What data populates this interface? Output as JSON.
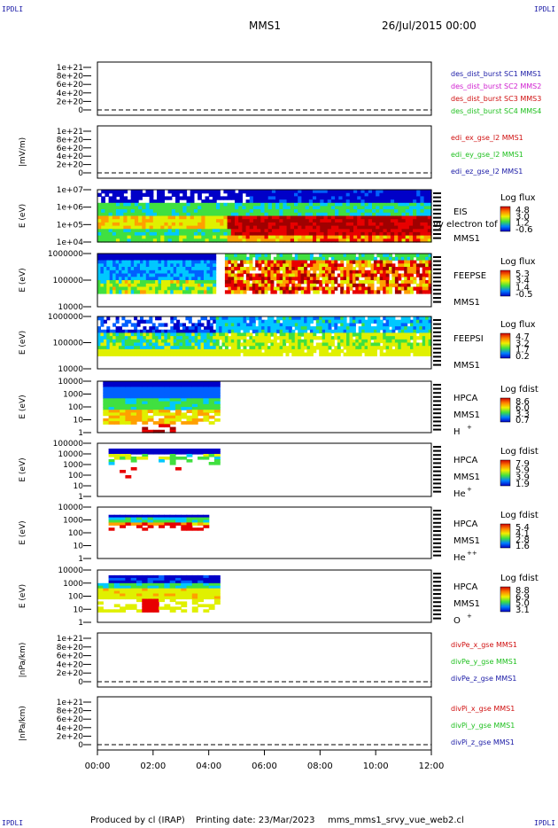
{
  "header": {
    "spacecraft": "MMS1",
    "date": "26/Jul/2015 00:00"
  },
  "corners": {
    "top_left": "IPDLI",
    "top_right": "IPDLI",
    "bottom_left": "IPDLI",
    "bottom_right": "IPDLI"
  },
  "footer": {
    "produced": "Produced by cl (IRAP)",
    "printing": "Printing date: 23/Mar/2023",
    "config": "mms_mms1_srvy_vue_web2.cl"
  },
  "colors": {
    "blue_label": "#1a1aa6",
    "red_label": "#d01010",
    "green_label": "#20c020",
    "magenta_label": "#d020d0",
    "colormap": [
      "#0000c8",
      "#0060ff",
      "#00c8ff",
      "#40e040",
      "#e0f000",
      "#ffa000",
      "#e80000",
      "#a00000"
    ]
  },
  "chart_data": [
    {
      "type": "line",
      "ylabel": "",
      "yticks": [
        "1e+21",
        "8e+20",
        "6e+20",
        "4e+20",
        "2e+20",
        "0"
      ],
      "legend": [
        {
          "text": "des_dist_burst SC1 MMS1",
          "color": "#1a1aa6"
        },
        {
          "text": "des_dist_burst SC2 MMS2",
          "color": "#d020d0"
        },
        {
          "text": "des_dist_burst SC3 MMS3",
          "color": "#d01010"
        },
        {
          "text": "des_dist_burst SC4 MMS4",
          "color": "#20c020"
        }
      ]
    },
    {
      "type": "line",
      "ylabel": "|mV/m)",
      "yticks": [
        "1e+21",
        "8e+20",
        "6e+20",
        "4e+20",
        "2e+20",
        "0"
      ],
      "legend": [
        {
          "text": "edi_ex_gse_l2 MMS1",
          "color": "#d01010"
        },
        {
          "text": "edi_ey_gse_l2 MMS1",
          "color": "#20c020"
        },
        {
          "text": "edi_ez_gse_l2 MMS1",
          "color": "#1a1aa6"
        }
      ]
    },
    {
      "type": "heatmap",
      "ylabel": "E (eV)",
      "yticks": [
        "1e+07",
        "1e+06",
        "1e+05",
        "1e+04"
      ],
      "labels": [
        "EIS",
        "MMS1"
      ],
      "overlay": "vy electron tof",
      "colorbar": {
        "title": "Log flux",
        "ticks": [
          "4.8",
          "3.0",
          "1.2",
          "-0.6"
        ]
      }
    },
    {
      "type": "heatmap",
      "ylabel": "E (eV)",
      "yticks": [
        "1000000",
        "100000",
        "10000"
      ],
      "labels": [
        "FEEPSE",
        "MMS1"
      ],
      "colorbar": {
        "title": "Log flux",
        "ticks": [
          "5.3",
          "3.4",
          "1.4",
          "-0.5"
        ]
      }
    },
    {
      "type": "heatmap",
      "ylabel": "E (eV)",
      "yticks": [
        "1000000",
        "100000",
        "10000"
      ],
      "labels": [
        "FEEPSI",
        "MMS1"
      ],
      "colorbar": {
        "title": "Log flux",
        "ticks": [
          "4.7",
          "3.2",
          "1.7",
          "0.2"
        ]
      }
    },
    {
      "type": "heatmap",
      "ylabel": "E (eV)",
      "yticks": [
        "10000",
        "1000",
        "100",
        "10",
        "1"
      ],
      "labels": [
        "HPCA",
        "MMS1",
        "H"
      ],
      "species_sup": "+",
      "colorbar": {
        "title": "Log fdist",
        "ticks": [
          "8.6",
          "6.0",
          "3.3",
          "0.7"
        ]
      }
    },
    {
      "type": "heatmap",
      "ylabel": "E (eV)",
      "yticks": [
        "100000",
        "10000",
        "1000",
        "100",
        "10",
        "1"
      ],
      "labels": [
        "HPCA",
        "MMS1",
        "He"
      ],
      "species_sup": "+",
      "colorbar": {
        "title": "Log fdist",
        "ticks": [
          "7.9",
          "5.9",
          "3.9",
          "1.9"
        ]
      }
    },
    {
      "type": "heatmap",
      "ylabel": "E (eV)",
      "yticks": [
        "10000",
        "1000",
        "100",
        "10",
        "1"
      ],
      "labels": [
        "HPCA",
        "MMS1",
        "He"
      ],
      "species_sup": "++",
      "colorbar": {
        "title": "Log fdist",
        "ticks": [
          "5.4",
          "4.1",
          "2.8",
          "1.6"
        ]
      }
    },
    {
      "type": "heatmap",
      "ylabel": "E (eV)",
      "yticks": [
        "10000",
        "1000",
        "100",
        "10",
        "1"
      ],
      "labels": [
        "HPCA",
        "MMS1",
        "O"
      ],
      "species_sup": "+",
      "colorbar": {
        "title": "Log fdist",
        "ticks": [
          "8.8",
          "6.9",
          "5.0",
          "3.1"
        ]
      }
    },
    {
      "type": "line",
      "ylabel": "|nPa/km)",
      "yticks": [
        "1e+21",
        "8e+20",
        "6e+20",
        "4e+20",
        "2e+20",
        "0"
      ],
      "legend": [
        {
          "text": "divPe_x_gse MMS1",
          "color": "#d01010"
        },
        {
          "text": "divPe_y_gse MMS1",
          "color": "#20c020"
        },
        {
          "text": "divPe_z_gse MMS1",
          "color": "#1a1aa6"
        }
      ]
    },
    {
      "type": "line",
      "ylabel": "|nPa/km)",
      "yticks": [
        "1e+21",
        "8e+20",
        "6e+20",
        "4e+20",
        "2e+20",
        "0"
      ],
      "legend": [
        {
          "text": "divPi_x_gse MMS1",
          "color": "#d01010"
        },
        {
          "text": "divPi_y_gse MMS1",
          "color": "#20c020"
        },
        {
          "text": "divPi_z_gse MMS1",
          "color": "#1a1aa6"
        }
      ]
    }
  ],
  "xaxis": {
    "ticks": [
      "00:00",
      "02:00",
      "04:00",
      "06:00",
      "08:00",
      "10:00",
      "12:00"
    ]
  }
}
